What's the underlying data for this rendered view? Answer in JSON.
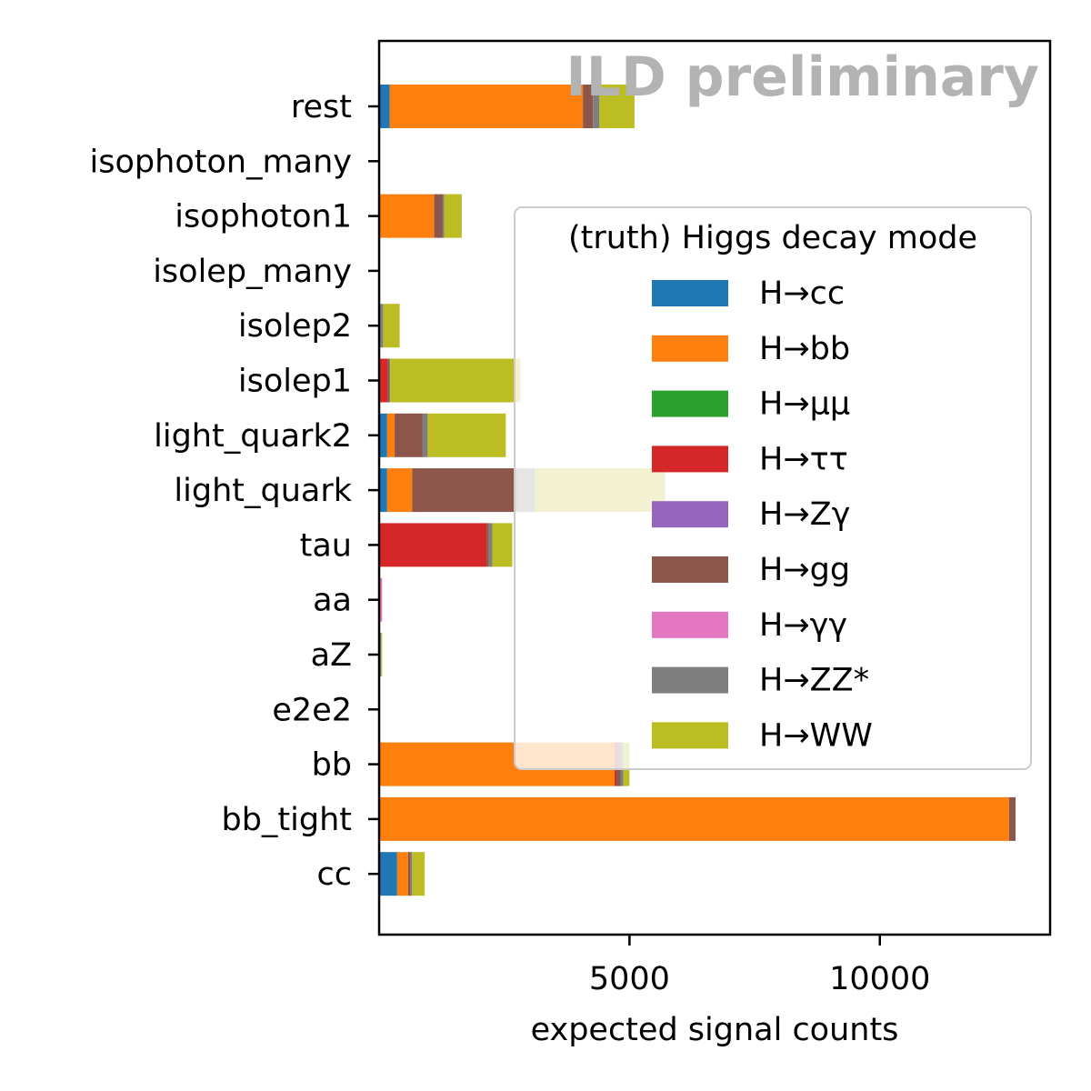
{
  "chart_data": {
    "type": "bar",
    "orientation": "horizontal",
    "stacked": true,
    "watermark": "ILD preliminary",
    "xlabel": "expected signal counts",
    "ylabel": "",
    "xlim": [
      0,
      13400
    ],
    "xticks": [
      5000,
      10000
    ],
    "xtick_labels": [
      "5000",
      "10000"
    ],
    "grid": false,
    "legend": {
      "title": "(truth) Higgs decay mode",
      "placement": "right",
      "alpha": 0.8
    },
    "categories": [
      "rest",
      "isophoton_many",
      "isophoton1",
      "isolep_many",
      "isolep2",
      "isolep1",
      "light_quark2",
      "light_quark",
      "tau",
      "aa",
      "aZ",
      "e2e2",
      "bb",
      "bb_tight",
      "cc"
    ],
    "series": [
      {
        "name": "H→cc",
        "color": "#1f77b4",
        "values": [
          210,
          0,
          0,
          0,
          0,
          20,
          160,
          160,
          0,
          0,
          0,
          0,
          0,
          0,
          360
        ]
      },
      {
        "name": "H→bb",
        "color": "#ff7f0e",
        "values": [
          3860,
          0,
          1100,
          0,
          0,
          0,
          150,
          500,
          0,
          0,
          0,
          0,
          4700,
          12580,
          220
        ]
      },
      {
        "name": "H→μμ",
        "color": "#2ca02c",
        "values": [
          0,
          0,
          0,
          0,
          0,
          0,
          0,
          0,
          0,
          0,
          0,
          0,
          0,
          0,
          0
        ]
      },
      {
        "name": "H→ττ",
        "color": "#d62728",
        "values": [
          0,
          0,
          0,
          0,
          20,
          150,
          0,
          0,
          2150,
          0,
          0,
          0,
          30,
          0,
          0
        ]
      },
      {
        "name": "H→Zγ",
        "color": "#9467bd",
        "values": [
          0,
          0,
          0,
          0,
          0,
          0,
          0,
          0,
          0,
          0,
          0,
          0,
          0,
          0,
          0
        ]
      },
      {
        "name": "H→gg",
        "color": "#8c564b",
        "values": [
          200,
          0,
          170,
          0,
          0,
          30,
          560,
          2100,
          40,
          0,
          20,
          0,
          90,
          130,
          50
        ]
      },
      {
        "name": "H→γγ",
        "color": "#e377c2",
        "values": [
          0,
          0,
          0,
          0,
          0,
          0,
          0,
          0,
          0,
          60,
          0,
          0,
          0,
          0,
          0
        ]
      },
      {
        "name": "H→ZZ*",
        "color": "#7f7f7f",
        "values": [
          130,
          0,
          30,
          0,
          60,
          20,
          100,
          350,
          70,
          0,
          20,
          0,
          60,
          0,
          30
        ]
      },
      {
        "name": "H→WW",
        "color": "#bcbd22",
        "values": [
          700,
          0,
          350,
          0,
          330,
          2600,
          1560,
          2600,
          400,
          0,
          20,
          0,
          120,
          0,
          250
        ]
      }
    ]
  }
}
